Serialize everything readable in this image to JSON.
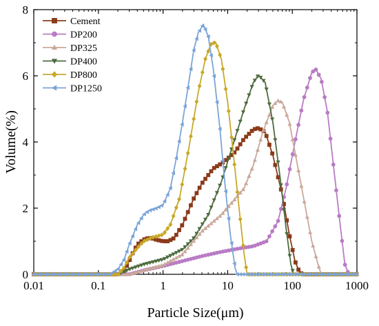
{
  "chart_data": {
    "type": "line",
    "xscale": "log",
    "xlabel": "Particle Size(μm)",
    "ylabel": "Volume(%)",
    "xlim": [
      0.01,
      1000
    ],
    "ylim": [
      0,
      8
    ],
    "xticks": [
      "0.01",
      "0.1",
      "1",
      "10",
      "100",
      "1000"
    ],
    "yticks": [
      "0",
      "2",
      "4",
      "6",
      "8"
    ],
    "legend_position": "top-left",
    "grid": false,
    "series": [
      {
        "name": "Cement",
        "color": "#8B3A1A",
        "marker": "square",
        "points": [
          [
            0.01,
            0
          ],
          [
            0.2,
            0
          ],
          [
            0.25,
            0.1
          ],
          [
            0.3,
            0.4
          ],
          [
            0.35,
            0.7
          ],
          [
            0.4,
            0.9
          ],
          [
            0.5,
            1.05
          ],
          [
            0.6,
            1.1
          ],
          [
            0.7,
            1.08
          ],
          [
            0.8,
            1.04
          ],
          [
            1.0,
            1.0
          ],
          [
            1.2,
            1.0
          ],
          [
            1.5,
            1.1
          ],
          [
            2.0,
            1.5
          ],
          [
            3.0,
            2.3
          ],
          [
            4.0,
            2.75
          ],
          [
            6.0,
            3.2
          ],
          [
            8.0,
            3.35
          ],
          [
            10.0,
            3.5
          ],
          [
            13.0,
            3.7
          ],
          [
            18.0,
            4.1
          ],
          [
            25.0,
            4.38
          ],
          [
            30.0,
            4.42
          ],
          [
            38.0,
            4.3
          ],
          [
            50.0,
            3.6
          ],
          [
            70.0,
            2.4
          ],
          [
            90.0,
            1.2
          ],
          [
            110.0,
            0.4
          ],
          [
            130.0,
            0.05
          ],
          [
            150.0,
            0
          ],
          [
            1000,
            0
          ]
        ]
      },
      {
        "name": "DP200",
        "color": "#B97BC5",
        "marker": "circle",
        "points": [
          [
            0.01,
            0
          ],
          [
            0.3,
            0
          ],
          [
            0.5,
            0.12
          ],
          [
            1.0,
            0.25
          ],
          [
            2.0,
            0.4
          ],
          [
            4.0,
            0.55
          ],
          [
            8.0,
            0.68
          ],
          [
            15.0,
            0.78
          ],
          [
            25.0,
            0.85
          ],
          [
            40.0,
            1.0
          ],
          [
            60.0,
            1.6
          ],
          [
            80.0,
            2.6
          ],
          [
            110.0,
            4.0
          ],
          [
            150.0,
            5.3
          ],
          [
            200.0,
            6.1
          ],
          [
            230.0,
            6.2
          ],
          [
            280.0,
            5.9
          ],
          [
            350.0,
            4.9
          ],
          [
            450.0,
            3.0
          ],
          [
            550.0,
            1.5
          ],
          [
            650.0,
            0.3
          ],
          [
            750.0,
            0
          ],
          [
            1000,
            0
          ]
        ]
      },
      {
        "name": "DP325",
        "color": "#C9A89A",
        "marker": "triangle-up",
        "points": [
          [
            0.01,
            0
          ],
          [
            0.3,
            0
          ],
          [
            0.5,
            0.12
          ],
          [
            1.0,
            0.28
          ],
          [
            2.0,
            0.6
          ],
          [
            4.0,
            1.3
          ],
          [
            8.0,
            1.8
          ],
          [
            12.0,
            2.2
          ],
          [
            18.0,
            2.6
          ],
          [
            25.0,
            3.3
          ],
          [
            35.0,
            4.3
          ],
          [
            50.0,
            5.1
          ],
          [
            60.0,
            5.25
          ],
          [
            70.0,
            5.2
          ],
          [
            90.0,
            4.6
          ],
          [
            120.0,
            3.3
          ],
          [
            160.0,
            2.0
          ],
          [
            200.0,
            1.0
          ],
          [
            250.0,
            0.3
          ],
          [
            280.0,
            0
          ],
          [
            1000,
            0
          ]
        ]
      },
      {
        "name": "DP400",
        "color": "#4E6B3F",
        "marker": "triangle-down",
        "points": [
          [
            0.01,
            0
          ],
          [
            0.2,
            0
          ],
          [
            0.3,
            0.15
          ],
          [
            0.5,
            0.3
          ],
          [
            1.0,
            0.45
          ],
          [
            2.0,
            0.75
          ],
          [
            3.0,
            1.1
          ],
          [
            5.0,
            1.8
          ],
          [
            8.0,
            2.8
          ],
          [
            12.0,
            3.9
          ],
          [
            18.0,
            5.0
          ],
          [
            25.0,
            5.8
          ],
          [
            30.0,
            6.02
          ],
          [
            38.0,
            5.8
          ],
          [
            50.0,
            4.6
          ],
          [
            65.0,
            2.9
          ],
          [
            80.0,
            1.4
          ],
          [
            95.0,
            0.3
          ],
          [
            105.0,
            0
          ],
          [
            1000,
            0
          ]
        ]
      },
      {
        "name": "DP800",
        "color": "#C8A82A",
        "marker": "diamond",
        "points": [
          [
            0.01,
            0
          ],
          [
            0.2,
            0
          ],
          [
            0.25,
            0.2
          ],
          [
            0.3,
            0.5
          ],
          [
            0.4,
            0.8
          ],
          [
            0.5,
            1.0
          ],
          [
            0.7,
            1.12
          ],
          [
            1.0,
            1.2
          ],
          [
            1.3,
            1.5
          ],
          [
            1.8,
            2.3
          ],
          [
            2.5,
            3.8
          ],
          [
            3.5,
            5.5
          ],
          [
            4.5,
            6.5
          ],
          [
            5.5,
            6.95
          ],
          [
            6.5,
            7.02
          ],
          [
            8.0,
            6.5
          ],
          [
            10.0,
            5.2
          ],
          [
            12.0,
            3.8
          ],
          [
            15.0,
            2.0
          ],
          [
            18.0,
            0.6
          ],
          [
            20.0,
            0
          ],
          [
            1000,
            0
          ]
        ]
      },
      {
        "name": "DP1250",
        "color": "#7BA4D8",
        "marker": "triangle-left",
        "points": [
          [
            0.01,
            0
          ],
          [
            0.15,
            0
          ],
          [
            0.2,
            0.15
          ],
          [
            0.25,
            0.45
          ],
          [
            0.3,
            0.9
          ],
          [
            0.4,
            1.5
          ],
          [
            0.5,
            1.8
          ],
          [
            0.6,
            1.92
          ],
          [
            0.8,
            2.0
          ],
          [
            1.0,
            2.1
          ],
          [
            1.3,
            2.6
          ],
          [
            1.6,
            3.5
          ],
          [
            2.0,
            4.6
          ],
          [
            2.5,
            5.8
          ],
          [
            3.0,
            6.8
          ],
          [
            3.5,
            7.3
          ],
          [
            4.2,
            7.55
          ],
          [
            5.0,
            7.2
          ],
          [
            6.0,
            6.2
          ],
          [
            7.5,
            4.5
          ],
          [
            9.0,
            2.8
          ],
          [
            11.0,
            1.2
          ],
          [
            13.0,
            0.2
          ],
          [
            14.0,
            0
          ],
          [
            1000,
            0
          ]
        ]
      }
    ]
  }
}
